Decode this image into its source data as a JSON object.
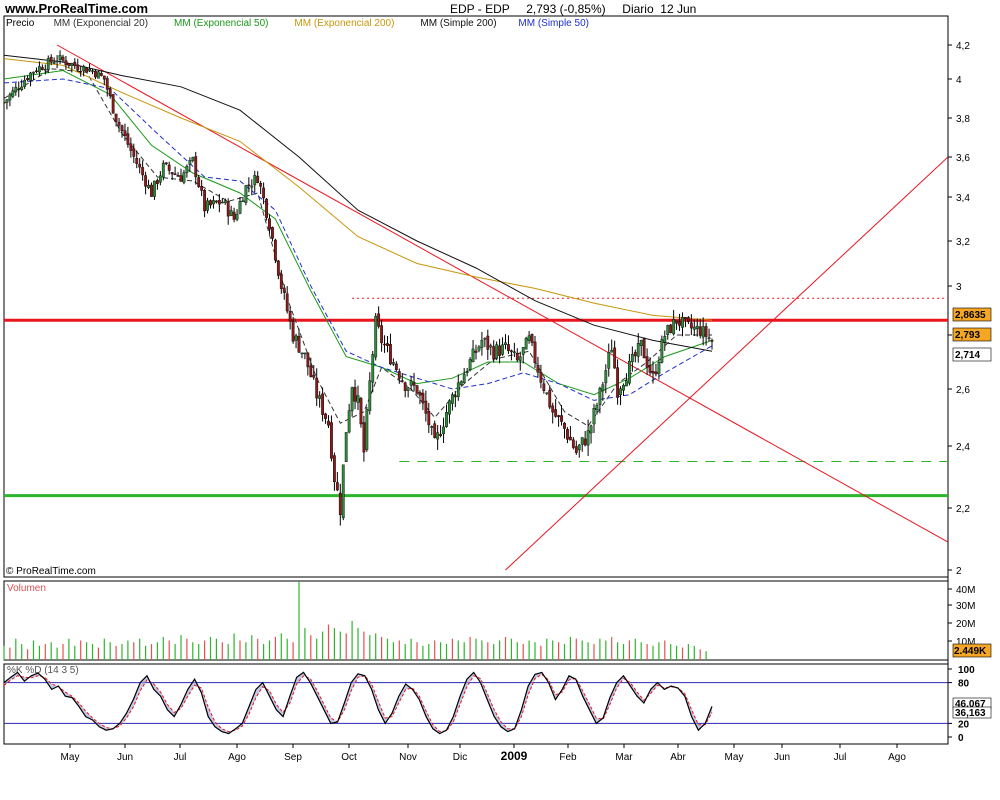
{
  "header": {
    "site_url": "www.ProRealTime.com",
    "title": "EDP - EDP     2,793 (-0,85%)     Diario  12 Jun"
  },
  "colors": {
    "candle_up": "#2e8b3a",
    "candle_down": "#8b1a1a",
    "ema20": "#333333",
    "ema50": "#1a9a1a",
    "ema200": "#c8960a",
    "sma200": "#111111",
    "sma50": "#1f2fd0",
    "resistance": "#e8141e",
    "support": "#2db52d",
    "trendline": "#e8141e",
    "volume_up": "#2db52d",
    "volume_down": "#e85050",
    "stoch_k": "#000000",
    "stoch_d": "#e8141e",
    "stoch_fill": "#9aa3d8",
    "level_line": "#2a2ab8",
    "price_label_bg": "#f5a623"
  },
  "chart_data": [
    {
      "type": "candlestick",
      "panel": "Precio",
      "legend": [
        {
          "label": "Precio",
          "color": "#000000"
        },
        {
          "label": "MM (Exponencial 20)",
          "color": "#333333"
        },
        {
          "label": "MM (Exponencial 50)",
          "color": "#1a9a1a"
        },
        {
          "label": "MM (Exponencial 200)",
          "color": "#c8960a"
        },
        {
          "label": "MM (Simple 200)",
          "color": "#111111"
        },
        {
          "label": "MM (Simple 50)",
          "color": "#1f2fd0"
        }
      ],
      "x_ticks": [
        "May",
        "Jun",
        "Jul",
        "Ago",
        "Sep",
        "Oct",
        "Nov",
        "Dic",
        "2009",
        "Feb",
        "Mar",
        "Abr",
        "May",
        "Jun",
        "Jul",
        "Ago"
      ],
      "y_ticks": [
        "4,2",
        "4",
        "3,8",
        "3,6",
        "3,4",
        "3,2",
        "3",
        "2,8",
        "2,6",
        "2,4",
        "2,2",
        "2"
      ],
      "ylim": [
        2.0,
        4.2
      ],
      "close_path": [
        {
          "x": 0,
          "y": 3.88
        },
        {
          "x": 5,
          "y": 4.05
        },
        {
          "x": 9,
          "y": 4.12
        },
        {
          "x": 12,
          "y": 4.08
        },
        {
          "x": 15,
          "y": 4.05
        },
        {
          "x": 17,
          "y": 4.0
        },
        {
          "x": 19,
          "y": 3.8
        },
        {
          "x": 22,
          "y": 3.6
        },
        {
          "x": 25,
          "y": 3.42
        },
        {
          "x": 27,
          "y": 3.55
        },
        {
          "x": 30,
          "y": 3.5
        },
        {
          "x": 32,
          "y": 3.58
        },
        {
          "x": 34,
          "y": 3.35
        },
        {
          "x": 37,
          "y": 3.38
        },
        {
          "x": 39,
          "y": 3.3
        },
        {
          "x": 41,
          "y": 3.45
        },
        {
          "x": 43,
          "y": 3.5
        },
        {
          "x": 45,
          "y": 3.28
        },
        {
          "x": 47,
          "y": 3.0
        },
        {
          "x": 49,
          "y": 2.8
        },
        {
          "x": 51,
          "y": 2.72
        },
        {
          "x": 53,
          "y": 2.58
        },
        {
          "x": 55,
          "y": 2.48
        },
        {
          "x": 56,
          "y": 2.3
        },
        {
          "x": 57,
          "y": 2.2
        },
        {
          "x": 58,
          "y": 2.46
        },
        {
          "x": 59,
          "y": 2.62
        },
        {
          "x": 60,
          "y": 2.55
        },
        {
          "x": 61,
          "y": 2.38
        },
        {
          "x": 62,
          "y": 2.62
        },
        {
          "x": 63,
          "y": 2.85
        },
        {
          "x": 64,
          "y": 2.78
        },
        {
          "x": 66,
          "y": 2.7
        },
        {
          "x": 68,
          "y": 2.62
        },
        {
          "x": 70,
          "y": 2.6
        },
        {
          "x": 72,
          "y": 2.48
        },
        {
          "x": 73,
          "y": 2.4
        },
        {
          "x": 75,
          "y": 2.52
        },
        {
          "x": 77,
          "y": 2.62
        },
        {
          "x": 79,
          "y": 2.7
        },
        {
          "x": 81,
          "y": 2.78
        },
        {
          "x": 83,
          "y": 2.74
        },
        {
          "x": 85,
          "y": 2.75
        },
        {
          "x": 87,
          "y": 2.7
        },
        {
          "x": 89,
          "y": 2.78
        },
        {
          "x": 91,
          "y": 2.64
        },
        {
          "x": 93,
          "y": 2.52
        },
        {
          "x": 95,
          "y": 2.46
        },
        {
          "x": 97,
          "y": 2.38
        },
        {
          "x": 99,
          "y": 2.44
        },
        {
          "x": 101,
          "y": 2.58
        },
        {
          "x": 103,
          "y": 2.76
        },
        {
          "x": 104,
          "y": 2.6
        },
        {
          "x": 106,
          "y": 2.68
        },
        {
          "x": 108,
          "y": 2.76
        },
        {
          "x": 110,
          "y": 2.64
        },
        {
          "x": 112,
          "y": 2.8
        },
        {
          "x": 114,
          "y": 2.86
        },
        {
          "x": 116,
          "y": 2.83
        },
        {
          "x": 118,
          "y": 2.82
        },
        {
          "x": 120,
          "y": 2.78
        }
      ],
      "series": [
        {
          "name": "MM (Exponencial 20)",
          "points": [
            {
              "x": 0,
              "y": 3.9
            },
            {
              "x": 8,
              "y": 4.06
            },
            {
              "x": 14,
              "y": 4.04
            },
            {
              "x": 20,
              "y": 3.72
            },
            {
              "x": 26,
              "y": 3.5
            },
            {
              "x": 32,
              "y": 3.48
            },
            {
              "x": 38,
              "y": 3.38
            },
            {
              "x": 43,
              "y": 3.42
            },
            {
              "x": 48,
              "y": 2.95
            },
            {
              "x": 53,
              "y": 2.64
            },
            {
              "x": 57,
              "y": 2.48
            },
            {
              "x": 61,
              "y": 2.52
            },
            {
              "x": 64,
              "y": 2.68
            },
            {
              "x": 69,
              "y": 2.6
            },
            {
              "x": 73,
              "y": 2.5
            },
            {
              "x": 78,
              "y": 2.62
            },
            {
              "x": 83,
              "y": 2.71
            },
            {
              "x": 89,
              "y": 2.74
            },
            {
              "x": 95,
              "y": 2.52
            },
            {
              "x": 99,
              "y": 2.47
            },
            {
              "x": 104,
              "y": 2.62
            },
            {
              "x": 109,
              "y": 2.7
            },
            {
              "x": 114,
              "y": 2.8
            },
            {
              "x": 120,
              "y": 2.8
            }
          ]
        },
        {
          "name": "MM (Exponencial 50)",
          "points": [
            {
              "x": 0,
              "y": 4.0
            },
            {
              "x": 10,
              "y": 4.05
            },
            {
              "x": 18,
              "y": 3.92
            },
            {
              "x": 25,
              "y": 3.66
            },
            {
              "x": 32,
              "y": 3.52
            },
            {
              "x": 40,
              "y": 3.42
            },
            {
              "x": 46,
              "y": 3.3
            },
            {
              "x": 52,
              "y": 2.98
            },
            {
              "x": 58,
              "y": 2.72
            },
            {
              "x": 64,
              "y": 2.68
            },
            {
              "x": 70,
              "y": 2.62
            },
            {
              "x": 76,
              "y": 2.64
            },
            {
              "x": 82,
              "y": 2.7
            },
            {
              "x": 88,
              "y": 2.7
            },
            {
              "x": 94,
              "y": 2.62
            },
            {
              "x": 100,
              "y": 2.58
            },
            {
              "x": 106,
              "y": 2.64
            },
            {
              "x": 112,
              "y": 2.72
            },
            {
              "x": 120,
              "y": 2.78
            }
          ]
        },
        {
          "name": "MM (Exponencial 200)",
          "points": [
            {
              "x": 0,
              "y": 4.12
            },
            {
              "x": 10,
              "y": 4.08
            },
            {
              "x": 20,
              "y": 3.93
            },
            {
              "x": 30,
              "y": 3.8
            },
            {
              "x": 40,
              "y": 3.68
            },
            {
              "x": 50,
              "y": 3.45
            },
            {
              "x": 60,
              "y": 3.22
            },
            {
              "x": 70,
              "y": 3.1
            },
            {
              "x": 80,
              "y": 3.04
            },
            {
              "x": 90,
              "y": 2.99
            },
            {
              "x": 100,
              "y": 2.93
            },
            {
              "x": 110,
              "y": 2.88
            },
            {
              "x": 120,
              "y": 2.86
            }
          ]
        },
        {
          "name": "MM (Simple 200)",
          "points": [
            {
              "x": 0,
              "y": 4.14
            },
            {
              "x": 10,
              "y": 4.1
            },
            {
              "x": 20,
              "y": 4.02
            },
            {
              "x": 30,
              "y": 3.96
            },
            {
              "x": 40,
              "y": 3.84
            },
            {
              "x": 50,
              "y": 3.6
            },
            {
              "x": 60,
              "y": 3.34
            },
            {
              "x": 70,
              "y": 3.2
            },
            {
              "x": 80,
              "y": 3.08
            },
            {
              "x": 90,
              "y": 2.94
            },
            {
              "x": 100,
              "y": 2.84
            },
            {
              "x": 110,
              "y": 2.78
            },
            {
              "x": 120,
              "y": 2.74
            }
          ]
        },
        {
          "name": "MM (Simple 50)",
          "points": [
            {
              "x": 0,
              "y": 3.98
            },
            {
              "x": 10,
              "y": 4.0
            },
            {
              "x": 18,
              "y": 3.95
            },
            {
              "x": 26,
              "y": 3.72
            },
            {
              "x": 34,
              "y": 3.5
            },
            {
              "x": 40,
              "y": 3.48
            },
            {
              "x": 46,
              "y": 3.34
            },
            {
              "x": 52,
              "y": 3.0
            },
            {
              "x": 58,
              "y": 2.74
            },
            {
              "x": 64,
              "y": 2.68
            },
            {
              "x": 70,
              "y": 2.64
            },
            {
              "x": 76,
              "y": 2.6
            },
            {
              "x": 82,
              "y": 2.62
            },
            {
              "x": 88,
              "y": 2.66
            },
            {
              "x": 94,
              "y": 2.62
            },
            {
              "x": 100,
              "y": 2.56
            },
            {
              "x": 106,
              "y": 2.58
            },
            {
              "x": 112,
              "y": 2.66
            },
            {
              "x": 120,
              "y": 2.76
            }
          ]
        }
      ],
      "horizontal_lines": [
        {
          "name": "resistance",
          "y": 2.86,
          "style": "solid",
          "color": "#e8141e"
        },
        {
          "name": "support",
          "y": 2.24,
          "style": "solid",
          "color": "#2db52d"
        },
        {
          "name": "dotted-level",
          "y": 2.95,
          "style": "dotted",
          "color": "#e8141e"
        },
        {
          "name": "dashed-support",
          "y": 2.35,
          "style": "dashed",
          "color": "#2db52d"
        }
      ],
      "trendlines": [
        {
          "name": "downtrend",
          "from": {
            "x": 9,
            "y": 4.2
          },
          "to": {
            "x": 160,
            "y": 2.09
          }
        },
        {
          "name": "uptrend",
          "from": {
            "x": 85,
            "y": 2.0
          },
          "to": {
            "x": 160,
            "y": 3.6
          }
        }
      ],
      "price_labels": [
        "2,8635",
        "2,793",
        "2,714"
      ],
      "watermark": "© ProRealTime.com"
    },
    {
      "type": "bar",
      "panel": "Volumen",
      "y_ticks": [
        "40M",
        "30M",
        "20M",
        "10M"
      ],
      "ylim": [
        0,
        45
      ],
      "values": [
        8,
        7,
        12,
        9,
        6,
        11,
        8,
        9,
        10,
        7,
        9,
        12,
        8,
        11,
        10,
        9,
        7,
        12,
        10,
        8,
        9,
        11,
        10,
        12,
        8,
        9,
        10,
        13,
        11,
        9,
        14,
        12,
        10,
        9,
        11,
        13,
        12,
        10,
        9,
        15,
        11,
        10,
        14,
        12,
        9,
        11,
        13,
        15,
        12,
        10,
        44,
        18,
        14,
        12,
        16,
        20,
        18,
        16,
        15,
        22,
        18,
        16,
        14,
        15,
        13,
        12,
        10,
        11,
        9,
        12,
        10,
        8,
        9,
        11,
        10,
        9,
        12,
        11,
        10,
        13,
        12,
        11,
        10,
        9,
        11,
        13,
        12,
        10,
        9,
        11,
        10,
        8,
        12,
        11,
        10,
        9,
        13,
        12,
        11,
        10,
        9,
        12,
        11,
        13,
        10,
        9,
        11,
        12,
        10,
        9,
        8,
        10,
        11,
        9,
        8,
        7,
        9,
        8,
        6,
        5
      ],
      "last_value_label": "2.449K"
    },
    {
      "type": "line",
      "panel": "%K %D (14 3 5)",
      "y_ticks": [
        "100",
        "80",
        "20",
        "0"
      ],
      "ylim": [
        0,
        100
      ],
      "levels": [
        80,
        20
      ],
      "series": [
        {
          "name": "%K",
          "values": [
            80,
            88,
            95,
            82,
            90,
            94,
            85,
            70,
            75,
            60,
            58,
            45,
            30,
            25,
            15,
            10,
            12,
            20,
            35,
            55,
            80,
            90,
            70,
            60,
            40,
            30,
            48,
            70,
            85,
            65,
            30,
            15,
            8,
            5,
            12,
            20,
            45,
            70,
            80,
            60,
            40,
            30,
            60,
            88,
            95,
            80,
            60,
            40,
            20,
            22,
            50,
            80,
            93,
            90,
            70,
            40,
            20,
            35,
            60,
            78,
            70,
            55,
            30,
            12,
            5,
            10,
            30,
            60,
            85,
            95,
            80,
            55,
            30,
            15,
            8,
            12,
            40,
            75,
            92,
            95,
            80,
            55,
            70,
            90,
            85,
            60,
            40,
            20,
            28,
            58,
            80,
            90,
            75,
            60,
            50,
            70,
            80,
            70,
            75,
            72,
            60,
            30,
            10,
            20,
            45
          ]
        },
        {
          "name": "%D",
          "values": [
            76,
            84,
            90,
            88,
            87,
            90,
            88,
            78,
            74,
            66,
            60,
            50,
            38,
            28,
            20,
            14,
            12,
            16,
            28,
            44,
            68,
            84,
            78,
            66,
            48,
            36,
            42,
            60,
            76,
            72,
            44,
            22,
            12,
            8,
            10,
            16,
            34,
            58,
            74,
            68,
            48,
            36,
            50,
            78,
            90,
            86,
            68,
            48,
            28,
            22,
            40,
            68,
            88,
            90,
            78,
            52,
            28,
            30,
            50,
            70,
            72,
            60,
            38,
            18,
            8,
            9,
            22,
            48,
            74,
            90,
            86,
            64,
            40,
            22,
            12,
            12,
            30,
            62,
            86,
            92,
            84,
            62,
            66,
            84,
            86,
            68,
            48,
            28,
            26,
            48,
            72,
            86,
            80,
            66,
            54,
            64,
            76,
            72,
            74,
            72,
            64,
            40,
            18,
            18,
            36
          ]
        }
      ],
      "last_value_labels": [
        "46,067",
        "36,163"
      ]
    }
  ]
}
